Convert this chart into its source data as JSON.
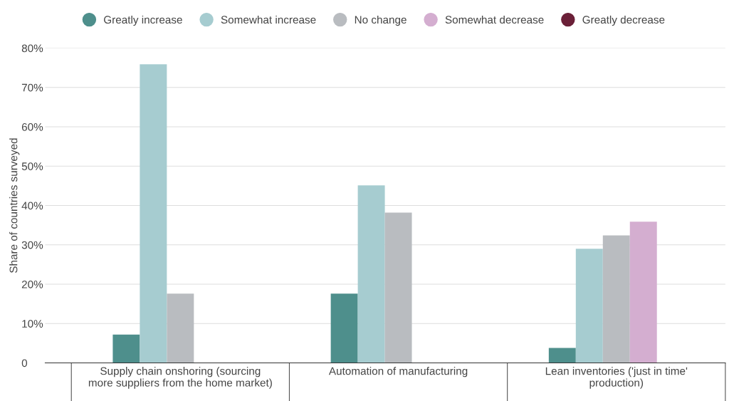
{
  "chart_data": {
    "type": "bar",
    "ylabel": "Share of countries surveyed",
    "categories": [
      "Supply chain onshoring (sourcing\nmore suppliers from the home market)",
      "Automation of manufacturing",
      "Lean inventories ('just in time'\nproduction)"
    ],
    "series": [
      {
        "name": "Greatly increase",
        "color": "#4e8f8c",
        "values": [
          7.2,
          17.6,
          3.8
        ]
      },
      {
        "name": "Somewhat increase",
        "color": "#a6ccd0",
        "values": [
          75.9,
          45.1,
          29.0
        ]
      },
      {
        "name": "No change",
        "color": "#b9bcc0",
        "values": [
          17.6,
          38.2,
          32.4
        ]
      },
      {
        "name": "Somewhat decrease",
        "color": "#d4aed0",
        "values": [
          0,
          0,
          35.9
        ]
      },
      {
        "name": "Greatly decrease",
        "color": "#6b2038",
        "values": [
          0,
          0,
          0
        ]
      }
    ],
    "ylim": [
      0,
      80
    ],
    "yticks": [
      0,
      {
        "value": 10,
        "label": "10%"
      },
      {
        "value": 20,
        "label": "20%"
      },
      {
        "value": 30,
        "label": "30%"
      },
      {
        "value": 40,
        "label": "40%"
      },
      {
        "value": 50,
        "label": "50%"
      },
      {
        "value": 60,
        "label": "60%"
      },
      {
        "value": 70,
        "label": "70%"
      },
      {
        "value": 80,
        "label": "80%"
      }
    ],
    "grid": "y",
    "legend": "top",
    "marker": "circle"
  }
}
